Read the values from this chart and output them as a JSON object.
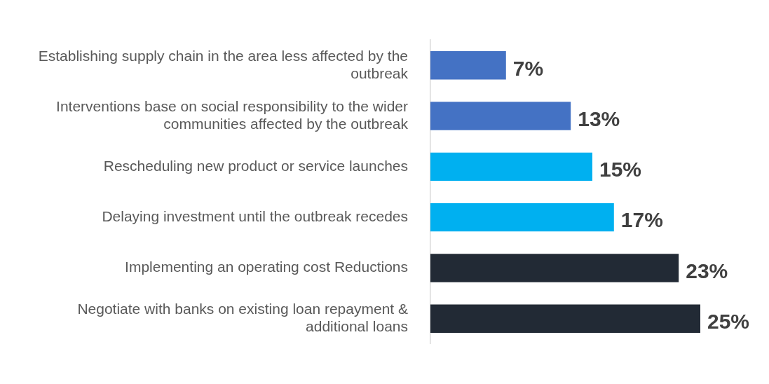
{
  "chart_data": {
    "type": "bar",
    "orientation": "horizontal",
    "categories": [
      "Establishing supply chain in the area less affected by the outbreak",
      "Interventions base on social responsibility to the wider communities affected by the outbreak",
      "Rescheduling new product or service launches",
      "Delaying investment until the outbreak recedes",
      "Implementing an operating cost Reductions",
      "Negotiate with banks on existing loan repayment & additional loans"
    ],
    "values": [
      7,
      13,
      15,
      17,
      23,
      25
    ],
    "colors": [
      "#4472c4",
      "#4472c4",
      "#00b0f0",
      "#00b0f0",
      "#222a35",
      "#222a35"
    ],
    "value_labels": [
      "7%",
      "13%",
      "15%",
      "17%",
      "23%",
      "25%"
    ],
    "tick_labels": "y",
    "legend": false
  }
}
